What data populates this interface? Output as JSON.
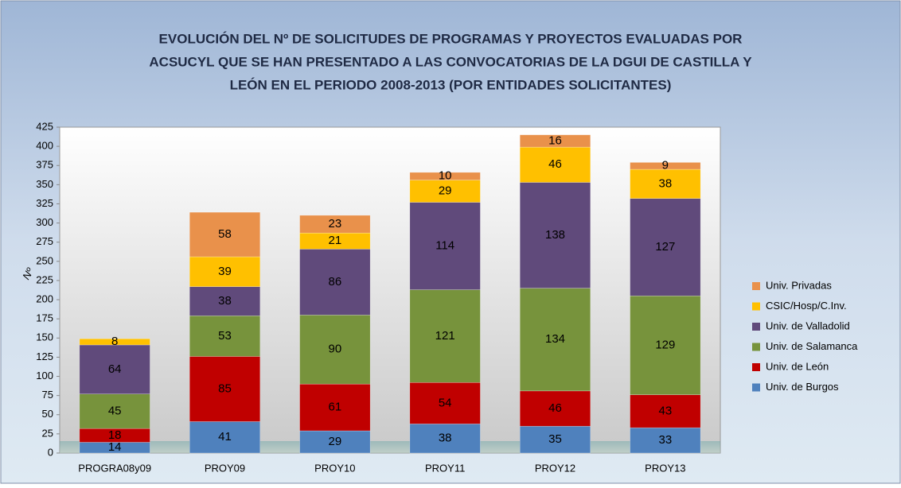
{
  "chart_data": {
    "type": "stacked_bar",
    "title": [
      "EVOLUCIÓN DEL Nº DE SOLICITUDES DE PROGRAMAS Y PROYECTOS EVALUADAS POR",
      "ACSUCYL QUE SE HAN PRESENTADO A LAS CONVOCATORIAS DE LA DGUI DE CASTILLA Y",
      "LEÓN EN EL PERIODO 2008-2013  (POR ENTIDADES SOLICITANTES)"
    ],
    "y_label": "Nº",
    "categories": [
      "PROGRA08y09",
      "PROY09",
      "PROY10",
      "PROY11",
      "PROY12",
      "PROY13"
    ],
    "series": [
      {
        "name": "Univ. de Burgos",
        "color": "#4f81bd",
        "values": [
          14,
          41,
          29,
          38,
          35,
          33
        ]
      },
      {
        "name": "Univ. de León",
        "color": "#c00000",
        "values": [
          18,
          85,
          61,
          54,
          46,
          43
        ]
      },
      {
        "name": "Univ. de Salamanca",
        "color": "#77933c",
        "values": [
          45,
          53,
          90,
          121,
          134,
          129
        ]
      },
      {
        "name": "Univ. de Valladolid",
        "color": "#604a7b",
        "values": [
          64,
          38,
          86,
          114,
          138,
          127
        ]
      },
      {
        "name": "CSIC/Hosp/C.Inv.",
        "color": "#ffc000",
        "values": [
          8,
          39,
          21,
          29,
          46,
          38
        ]
      },
      {
        "name": "Univ. Privadas",
        "color": "#e9914b",
        "values": [
          null,
          58,
          23,
          10,
          16,
          9
        ]
      }
    ],
    "ylim": [
      0,
      425
    ],
    "yticks": [
      0,
      25,
      50,
      75,
      100,
      125,
      150,
      175,
      200,
      225,
      250,
      275,
      300,
      325,
      350,
      375,
      400,
      425
    ],
    "grid": false,
    "legend": "right"
  }
}
